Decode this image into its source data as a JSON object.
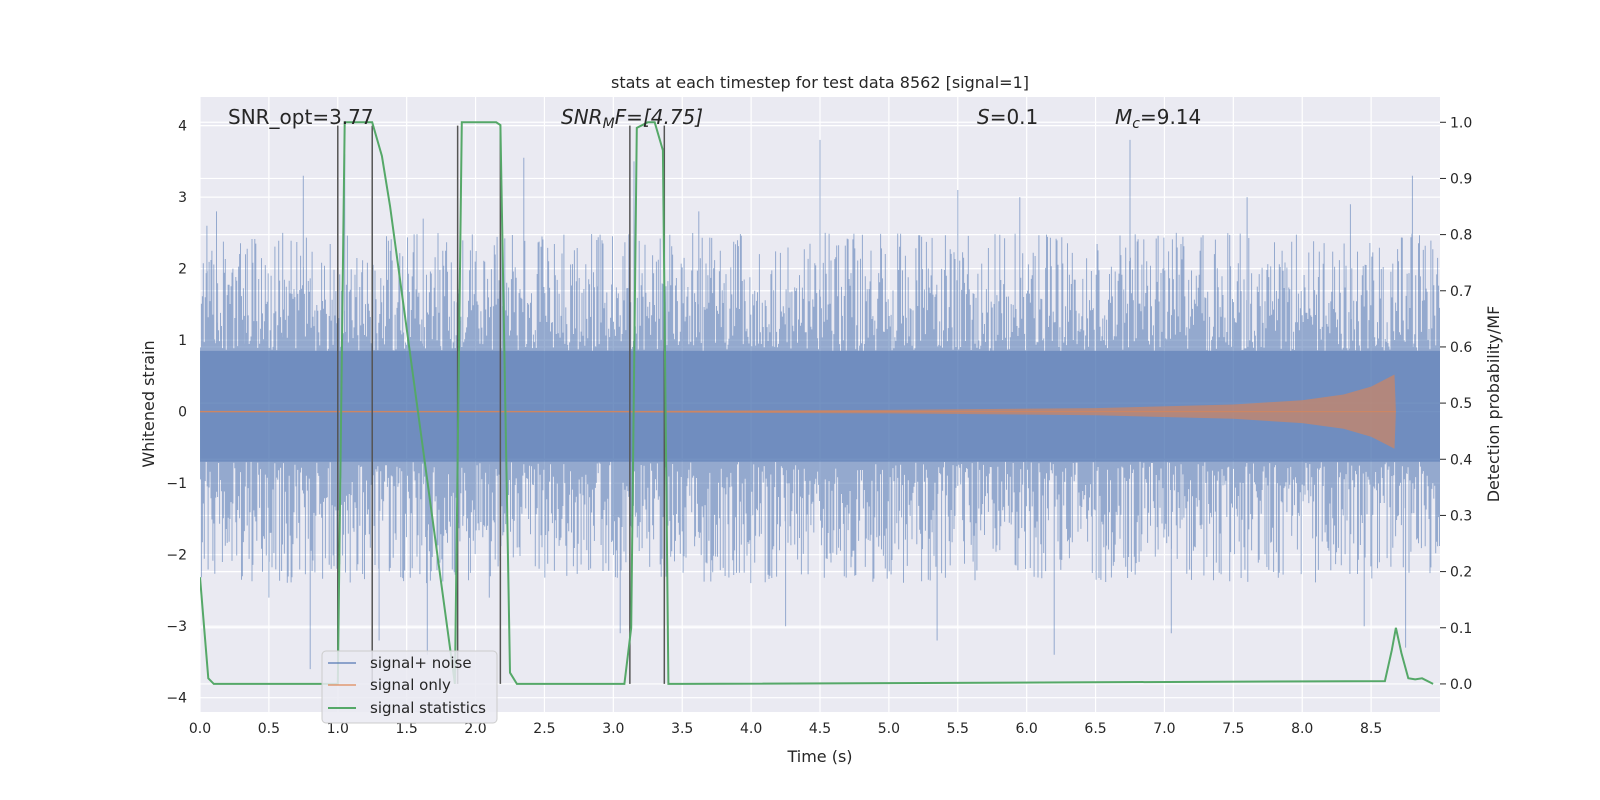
{
  "chart_data": {
    "type": "line",
    "title": "stats at each timestep for test data 8562 [signal=1]",
    "xlabel": "Time (s)",
    "ylabel": "Whitened strain",
    "y2label": "Detection probability/MF",
    "xlim": [
      0.0,
      9.0
    ],
    "ylim": [
      -4.2,
      4.4
    ],
    "y2lim": [
      -0.05,
      1.045
    ],
    "xticks": [
      "0.0",
      "0.5",
      "1.0",
      "1.5",
      "2.0",
      "2.5",
      "3.0",
      "3.5",
      "4.0",
      "4.5",
      "5.0",
      "5.5",
      "6.0",
      "6.5",
      "7.0",
      "7.5",
      "8.0",
      "8.5"
    ],
    "yticks": [
      "−4",
      "−3",
      "−2",
      "−1",
      "0",
      "1",
      "2",
      "3",
      "4"
    ],
    "y2ticks": [
      "0.0",
      "0.1",
      "0.2",
      "0.3",
      "0.4",
      "0.5",
      "0.6",
      "0.7",
      "0.8",
      "0.9",
      "1.0"
    ],
    "grid": true,
    "legend_placement": "lower-left",
    "legend": [
      "signal+ noise",
      "signal only",
      "signal statistics"
    ],
    "annotations": {
      "snr_opt": "SNR_opt=3.77",
      "snr_mf_base": "SNR",
      "snr_mf_sub": "M",
      "snr_mf_rest": "F=[4.75]",
      "s_sym": "S",
      "s_val": "=0.1",
      "mc_sym": "M",
      "mc_sub": "c",
      "mc_val": "=9.14"
    },
    "series": [
      {
        "name": "signal+ noise",
        "color": "#4c72b0",
        "band_core": [
          -0.7,
          0.85
        ],
        "typical_extent": [
          -2.1,
          2.2
        ],
        "peaks": [
          {
            "t": 0.05,
            "v": 2.6
          },
          {
            "t": 0.12,
            "v": 2.8
          },
          {
            "t": 0.33,
            "v": 2.2
          },
          {
            "t": 0.6,
            "v": 2.5
          },
          {
            "t": 0.75,
            "v": 3.3
          },
          {
            "t": 1.05,
            "v": 3.6
          },
          {
            "t": 1.25,
            "v": 2.8
          },
          {
            "t": 1.62,
            "v": 2.7
          },
          {
            "t": 2.35,
            "v": 3.55
          },
          {
            "t": 2.88,
            "v": 2.4
          },
          {
            "t": 3.15,
            "v": 3.5
          },
          {
            "t": 3.62,
            "v": 2.8
          },
          {
            "t": 4.5,
            "v": 3.8
          },
          {
            "t": 5.5,
            "v": 3.1
          },
          {
            "t": 5.95,
            "v": 3.0
          },
          {
            "t": 6.75,
            "v": 3.8
          },
          {
            "t": 7.6,
            "v": 3.0
          },
          {
            "t": 8.35,
            "v": 2.9
          },
          {
            "t": 8.8,
            "v": 3.3
          }
        ],
        "troughs": [
          {
            "t": 0.5,
            "v": -2.6
          },
          {
            "t": 0.8,
            "v": -3.6
          },
          {
            "t": 1.3,
            "v": -3.2
          },
          {
            "t": 1.65,
            "v": -3.4
          },
          {
            "t": 2.1,
            "v": -2.6
          },
          {
            "t": 3.05,
            "v": -3.1
          },
          {
            "t": 4.25,
            "v": -3.0
          },
          {
            "t": 5.35,
            "v": -3.2
          },
          {
            "t": 6.2,
            "v": -3.4
          },
          {
            "t": 7.05,
            "v": -3.1
          },
          {
            "t": 8.45,
            "v": -3.0
          },
          {
            "t": 8.75,
            "v": -3.3
          }
        ]
      },
      {
        "name": "signal only",
        "color": "#dd8452",
        "envelope": [
          {
            "t": 0.0,
            "a": 0.01
          },
          {
            "t": 3.0,
            "a": 0.01
          },
          {
            "t": 5.0,
            "a": 0.025
          },
          {
            "t": 6.5,
            "a": 0.05
          },
          {
            "t": 7.5,
            "a": 0.1
          },
          {
            "t": 8.0,
            "a": 0.16
          },
          {
            "t": 8.3,
            "a": 0.24
          },
          {
            "t": 8.5,
            "a": 0.35
          },
          {
            "t": 8.6,
            "a": 0.45
          },
          {
            "t": 8.67,
            "a": 0.52
          },
          {
            "t": 8.68,
            "a": 0.0
          },
          {
            "t": 9.0,
            "a": 0.0
          }
        ]
      },
      {
        "name": "signal statistics",
        "color": "#55a868",
        "x": [
          0.0,
          0.06,
          0.1,
          0.15,
          1.0,
          1.05,
          1.25,
          1.32,
          1.38,
          1.85,
          1.9,
          2.15,
          2.18,
          2.25,
          2.3,
          3.08,
          3.13,
          3.17,
          3.25,
          3.3,
          3.36,
          3.4,
          3.45,
          3.5,
          8.6,
          8.65,
          8.68,
          8.72,
          8.77,
          8.82,
          8.87,
          8.95
        ],
        "values": [
          0.19,
          0.01,
          0.0,
          0.0,
          0.0,
          1.0,
          1.0,
          0.94,
          0.85,
          0.0,
          1.0,
          1.0,
          0.995,
          0.02,
          0.0,
          0.0,
          0.1,
          0.99,
          1.0,
          1.0,
          0.95,
          0.0,
          0.0,
          0.0,
          0.005,
          0.06,
          0.1,
          0.055,
          0.01,
          0.008,
          0.01,
          0.0
        ]
      }
    ],
    "detection_markers": {
      "color": "#555555",
      "x": [
        1.0,
        1.25,
        1.87,
        2.18,
        3.12,
        3.37
      ]
    }
  }
}
